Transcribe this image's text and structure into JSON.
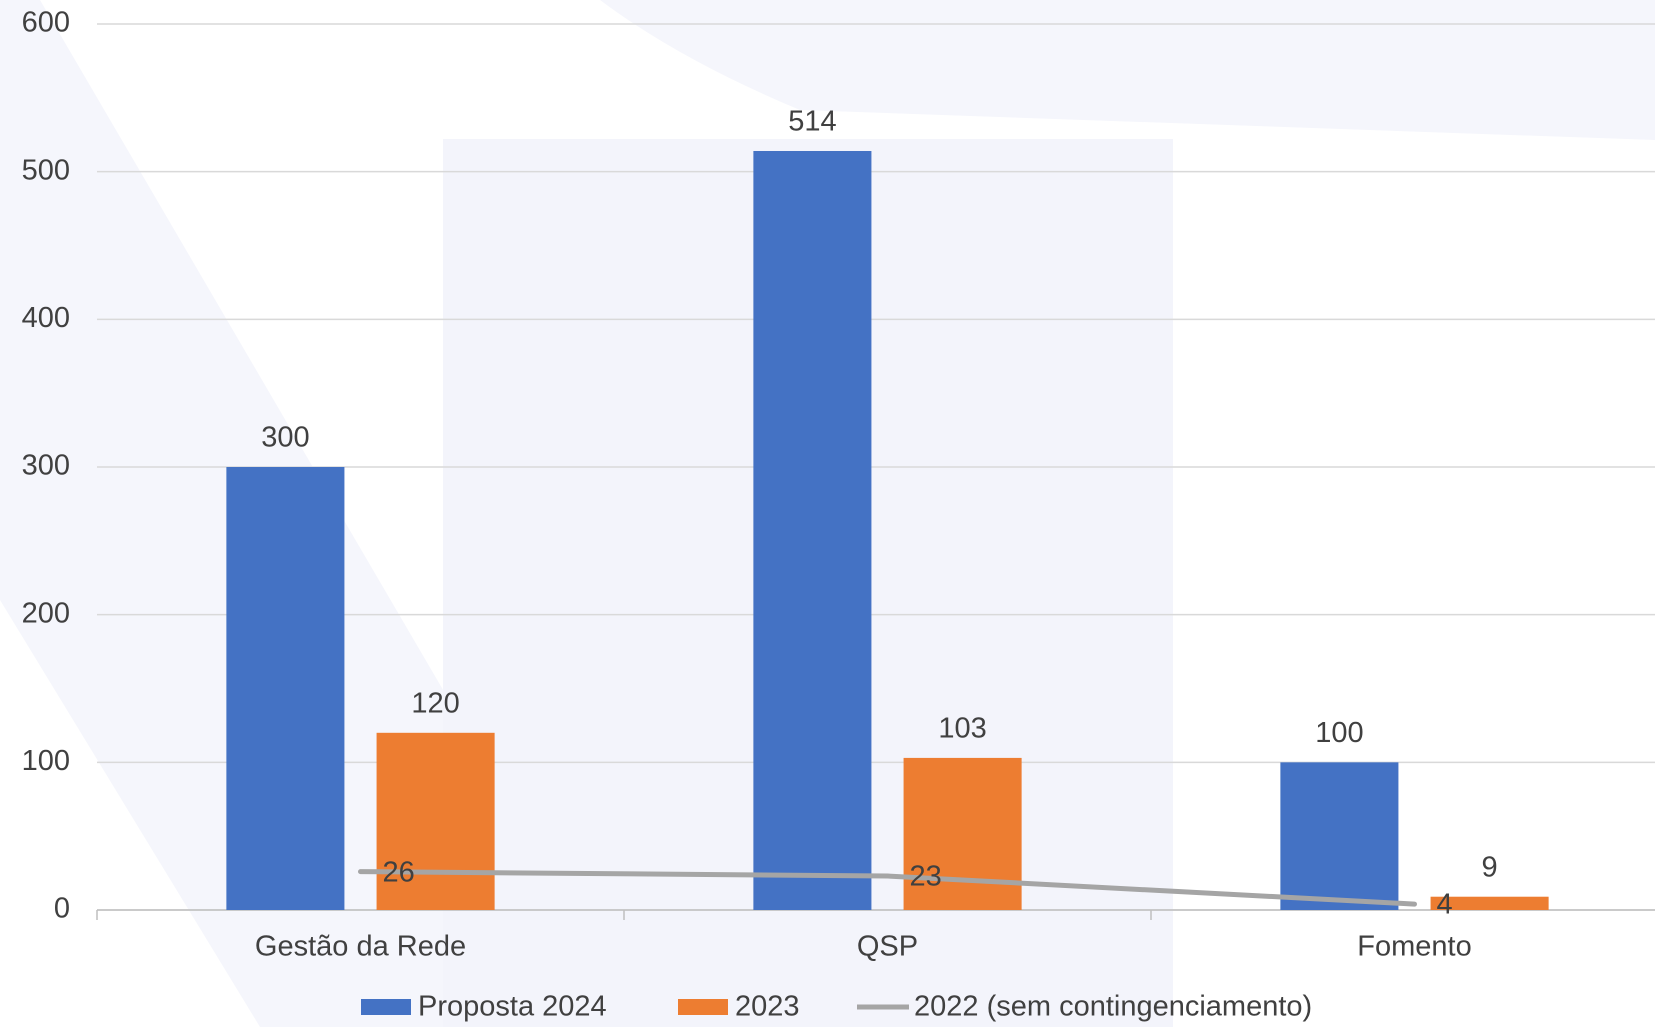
{
  "chart_data": {
    "type": "bar",
    "categories": [
      "Gestão da Rede",
      "QSP",
      "Fomento"
    ],
    "series": [
      {
        "name": "Proposta 2024",
        "color": "#4472c4",
        "values": [
          300,
          514,
          100
        ]
      },
      {
        "name": "2023",
        "color": "#ed7d31",
        "values": [
          120,
          103,
          9
        ]
      },
      {
        "name": "2022 (sem contingenciamento)",
        "color": "#a5a5a5",
        "type": "line",
        "values": [
          26,
          23,
          4
        ]
      }
    ],
    "ylim": [
      0,
      600
    ],
    "yticks": [
      0,
      100,
      200,
      300,
      400,
      500,
      600
    ],
    "grid": true,
    "legend": "bottom"
  }
}
